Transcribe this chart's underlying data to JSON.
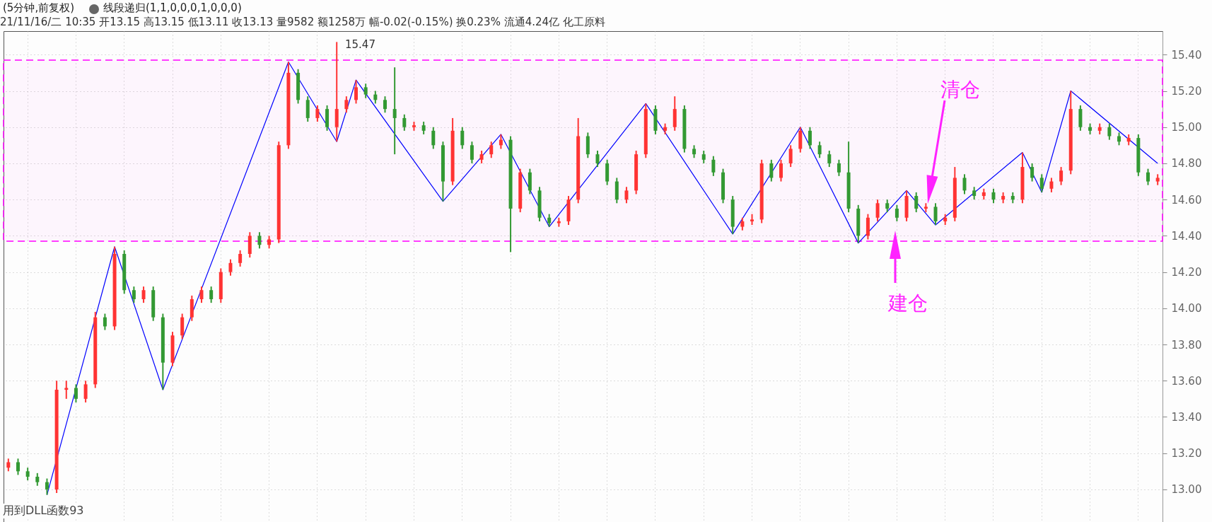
{
  "chart_data": {
    "type": "candlestick",
    "title": "(5分钟,前复权)",
    "subtitle": "线段递归(1,1,0,0,0,1,0,0,0)",
    "annotations": [
      "21/11/16/二 10:35 开13.15 高13.15 低13.11 收13.13 量9582 额1258万 幅-0.02(-0.15%) 换0.23% 流通4.24亿 化工原料",
      "15.47",
      "清仓",
      "建仓",
      "用到DLL函数93"
    ],
    "categories": [
      null,
      null,
      null,
      null,
      null,
      null,
      null,
      null,
      null,
      null,
      null,
      null,
      null,
      null,
      null,
      null,
      null,
      null,
      null,
      null,
      null,
      null,
      null,
      null,
      null,
      null,
      null,
      null,
      null,
      null,
      null,
      null,
      null,
      null,
      null,
      null,
      null,
      null,
      null,
      null,
      null,
      null,
      null,
      null,
      null,
      null,
      null,
      null,
      null,
      null,
      null,
      null,
      null,
      null,
      null,
      null,
      null,
      null,
      null,
      null,
      null,
      null,
      null,
      null,
      null,
      null,
      null,
      null,
      null,
      null,
      null,
      null,
      null,
      null,
      null,
      null,
      null,
      null,
      null,
      null,
      null,
      null,
      null,
      null,
      null,
      null,
      null,
      null,
      null,
      null,
      null,
      null,
      null,
      null,
      null,
      null,
      null,
      null,
      null,
      null,
      null,
      null,
      null,
      null,
      null,
      null,
      null,
      null,
      null,
      null,
      null,
      null,
      null,
      null,
      null,
      null,
      null,
      null,
      null,
      null
    ],
    "ohlc": [
      [
        13.12,
        13.17,
        13.1,
        13.15
      ],
      [
        13.15,
        13.17,
        13.08,
        13.1
      ],
      [
        13.1,
        13.12,
        13.05,
        13.07
      ],
      [
        13.07,
        13.09,
        13.02,
        13.04
      ],
      [
        13.04,
        13.06,
        12.97,
        13.0
      ],
      [
        13.0,
        13.6,
        12.98,
        13.55
      ],
      [
        13.55,
        13.6,
        13.5,
        13.56
      ],
      [
        13.56,
        13.58,
        13.48,
        13.5
      ],
      [
        13.5,
        13.6,
        13.48,
        13.58
      ],
      [
        13.58,
        13.98,
        13.56,
        13.95
      ],
      [
        13.95,
        13.97,
        13.88,
        13.9
      ],
      [
        13.9,
        14.34,
        13.88,
        14.3
      ],
      [
        14.3,
        14.32,
        14.08,
        14.1
      ],
      [
        14.1,
        14.12,
        14.03,
        14.05
      ],
      [
        14.05,
        14.12,
        14.03,
        14.1
      ],
      [
        14.1,
        14.12,
        13.93,
        13.95
      ],
      [
        13.95,
        13.97,
        13.55,
        13.7
      ],
      [
        13.7,
        13.87,
        13.68,
        13.85
      ],
      [
        13.85,
        13.97,
        13.83,
        13.95
      ],
      [
        13.95,
        14.07,
        13.93,
        14.05
      ],
      [
        14.05,
        14.12,
        14.03,
        14.1
      ],
      [
        14.1,
        14.12,
        14.03,
        14.05
      ],
      [
        14.05,
        14.22,
        14.03,
        14.2
      ],
      [
        14.2,
        14.27,
        14.18,
        14.25
      ],
      [
        14.25,
        14.32,
        14.23,
        14.3
      ],
      [
        14.3,
        14.42,
        14.28,
        14.4
      ],
      [
        14.4,
        14.42,
        14.33,
        14.35
      ],
      [
        14.35,
        14.4,
        14.33,
        14.38
      ],
      [
        14.38,
        14.92,
        14.36,
        14.9
      ],
      [
        14.9,
        15.36,
        14.88,
        15.3
      ],
      [
        15.3,
        15.32,
        15.13,
        15.15
      ],
      [
        15.15,
        15.17,
        15.03,
        15.05
      ],
      [
        15.05,
        15.12,
        15.03,
        15.1
      ],
      [
        15.1,
        15.12,
        14.98,
        15.0
      ],
      [
        15.0,
        15.47,
        14.92,
        15.1
      ],
      [
        15.1,
        15.17,
        15.08,
        15.15
      ],
      [
        15.15,
        15.26,
        15.13,
        15.22
      ],
      [
        15.22,
        15.24,
        15.16,
        15.18
      ],
      [
        15.18,
        15.2,
        15.13,
        15.15
      ],
      [
        15.15,
        15.17,
        15.08,
        15.1
      ],
      [
        15.1,
        15.33,
        14.85,
        15.05
      ],
      [
        15.05,
        15.07,
        14.98,
        15.0
      ],
      [
        15.0,
        15.03,
        14.98,
        15.01
      ],
      [
        15.01,
        15.03,
        14.96,
        14.98
      ],
      [
        14.98,
        15.0,
        14.88,
        14.9
      ],
      [
        14.9,
        14.92,
        14.59,
        14.7
      ],
      [
        14.7,
        15.05,
        14.68,
        14.98
      ],
      [
        14.98,
        15.0,
        14.88,
        14.9
      ],
      [
        14.9,
        14.92,
        14.8,
        14.82
      ],
      [
        14.82,
        14.87,
        14.8,
        14.85
      ],
      [
        14.85,
        14.92,
        14.83,
        14.9
      ],
      [
        14.9,
        14.96,
        14.88,
        14.93
      ],
      [
        14.93,
        14.95,
        14.31,
        14.55
      ],
      [
        14.55,
        14.77,
        14.53,
        14.75
      ],
      [
        14.75,
        14.77,
        14.63,
        14.65
      ],
      [
        14.65,
        14.67,
        14.48,
        14.5
      ],
      [
        14.5,
        14.52,
        14.45,
        14.47
      ],
      [
        14.47,
        14.5,
        14.45,
        14.48
      ],
      [
        14.48,
        14.62,
        14.46,
        14.6
      ],
      [
        14.6,
        15.05,
        14.58,
        14.95
      ],
      [
        14.95,
        14.97,
        14.83,
        14.85
      ],
      [
        14.85,
        14.87,
        14.78,
        14.8
      ],
      [
        14.8,
        14.82,
        14.68,
        14.7
      ],
      [
        14.7,
        14.72,
        14.58,
        14.6
      ],
      [
        14.6,
        14.67,
        14.58,
        14.65
      ],
      [
        14.65,
        14.87,
        14.63,
        14.85
      ],
      [
        14.85,
        15.13,
        14.83,
        15.1
      ],
      [
        15.1,
        15.12,
        14.96,
        14.98
      ],
      [
        14.98,
        15.02,
        14.96,
        15.0
      ],
      [
        15.0,
        15.17,
        14.98,
        15.1
      ],
      [
        15.1,
        15.12,
        14.86,
        14.88
      ],
      [
        14.88,
        14.9,
        14.83,
        14.85
      ],
      [
        14.85,
        14.87,
        14.8,
        14.82
      ],
      [
        14.82,
        14.84,
        14.73,
        14.75
      ],
      [
        14.75,
        14.77,
        14.58,
        14.6
      ],
      [
        14.6,
        14.62,
        14.41,
        14.45
      ],
      [
        14.45,
        14.5,
        14.43,
        14.48
      ],
      [
        14.48,
        14.52,
        14.46,
        14.49
      ],
      [
        14.49,
        14.82,
        14.47,
        14.8
      ],
      [
        14.8,
        14.82,
        14.7,
        14.72
      ],
      [
        14.72,
        14.82,
        14.7,
        14.8
      ],
      [
        14.8,
        14.9,
        14.78,
        14.88
      ],
      [
        14.88,
        15.0,
        14.86,
        14.98
      ],
      [
        14.98,
        15.0,
        14.88,
        14.9
      ],
      [
        14.9,
        14.92,
        14.83,
        14.85
      ],
      [
        14.85,
        14.87,
        14.78,
        14.8
      ],
      [
        14.8,
        14.82,
        14.73,
        14.75
      ],
      [
        14.75,
        14.92,
        14.53,
        14.55
      ],
      [
        14.55,
        14.57,
        14.36,
        14.4
      ],
      [
        14.4,
        14.52,
        14.38,
        14.5
      ],
      [
        14.5,
        14.6,
        14.48,
        14.58
      ],
      [
        14.58,
        14.6,
        14.53,
        14.55
      ],
      [
        14.55,
        14.57,
        14.48,
        14.5
      ],
      [
        14.5,
        14.65,
        14.48,
        14.62
      ],
      [
        14.62,
        14.64,
        14.53,
        14.55
      ],
      [
        14.55,
        14.58,
        14.53,
        14.56
      ],
      [
        14.56,
        14.58,
        14.46,
        14.48
      ],
      [
        14.48,
        14.52,
        14.46,
        14.5
      ],
      [
        14.5,
        14.78,
        14.48,
        14.72
      ],
      [
        14.72,
        14.74,
        14.63,
        14.65
      ],
      [
        14.65,
        14.67,
        14.6,
        14.62
      ],
      [
        14.62,
        14.66,
        14.6,
        14.64
      ],
      [
        14.64,
        14.66,
        14.58,
        14.6
      ],
      [
        14.6,
        14.64,
        14.58,
        14.62
      ],
      [
        14.62,
        14.64,
        14.58,
        14.6
      ],
      [
        14.6,
        14.86,
        14.58,
        14.78
      ],
      [
        14.78,
        14.8,
        14.7,
        14.72
      ],
      [
        14.72,
        14.74,
        14.64,
        14.66
      ],
      [
        14.66,
        14.72,
        14.64,
        14.7
      ],
      [
        14.7,
        14.78,
        14.68,
        14.76
      ],
      [
        14.76,
        15.2,
        14.74,
        15.1
      ],
      [
        15.1,
        15.12,
        14.98,
        15.0
      ],
      [
        15.0,
        15.02,
        14.96,
        14.98
      ],
      [
        14.98,
        15.02,
        14.96,
        15.0
      ],
      [
        15.0,
        15.02,
        14.93,
        14.95
      ],
      [
        14.95,
        14.97,
        14.9,
        14.92
      ],
      [
        14.92,
        14.96,
        14.9,
        14.94
      ],
      [
        14.94,
        14.96,
        14.73,
        14.75
      ],
      [
        14.75,
        14.77,
        14.68,
        14.7
      ],
      [
        14.7,
        14.74,
        14.68,
        14.72
      ]
    ],
    "colors": [
      "#ff3333",
      "#339933",
      "#339933",
      "#339933",
      "#339933",
      "#ff3333",
      "#ff3333",
      "#339933",
      "#ff3333",
      "#ff3333",
      "#339933",
      "#ff3333",
      "#339933",
      "#339933",
      "#ff3333",
      "#339933",
      "#339933",
      "#ff3333",
      "#ff3333",
      "#ff3333",
      "#ff3333",
      "#339933",
      "#ff3333",
      "#ff3333",
      "#ff3333",
      "#ff3333",
      "#339933",
      "#ff3333",
      "#ff3333",
      "#ff3333",
      "#339933",
      "#339933",
      "#ff3333",
      "#339933",
      "#ff3333",
      "#ff3333",
      "#ff3333",
      "#339933",
      "#339933",
      "#339933",
      "#339933",
      "#339933",
      "#ff3333",
      "#339933",
      "#339933",
      "#339933",
      "#ff3333",
      "#339933",
      "#339933",
      "#ff3333",
      "#ff3333",
      "#ff3333",
      "#339933",
      "#ff3333",
      "#339933",
      "#339933",
      "#339933",
      "#ff3333",
      "#ff3333",
      "#ff3333",
      "#339933",
      "#339933",
      "#339933",
      "#339933",
      "#ff3333",
      "#ff3333",
      "#ff3333",
      "#339933",
      "#ff3333",
      "#ff3333",
      "#339933",
      "#339933",
      "#339933",
      "#339933",
      "#339933",
      "#339933",
      "#ff3333",
      "#ff3333",
      "#ff3333",
      "#339933",
      "#ff3333",
      "#ff3333",
      "#ff3333",
      "#339933",
      "#339933",
      "#339933",
      "#339933",
      "#339933",
      "#339933",
      "#ff3333",
      "#ff3333",
      "#339933",
      "#339933",
      "#ff3333",
      "#339933",
      "#ff3333",
      "#339933",
      "#ff3333",
      "#ff3333",
      "#339933",
      "#339933",
      "#ff3333",
      "#339933",
      "#ff3333",
      "#339933",
      "#ff3333",
      "#339933",
      "#339933",
      "#ff3333",
      "#ff3333",
      "#ff3333",
      "#339933",
      "#339933",
      "#ff3333",
      "#339933",
      "#339933",
      "#ff3333",
      "#339933",
      "#339933",
      "#ff3333"
    ],
    "series": [
      {
        "type": "line",
        "color": "#0000ff",
        "values": [
          null,
          null,
          null,
          null,
          12.97,
          null,
          null,
          null,
          null,
          null,
          null,
          14.34,
          null,
          null,
          null,
          null,
          13.55,
          null,
          null,
          null,
          null,
          null,
          null,
          null,
          null,
          null,
          null,
          null,
          null,
          15.36,
          null,
          null,
          null,
          null,
          14.92,
          null,
          15.26,
          null,
          null,
          null,
          null,
          null,
          null,
          null,
          null,
          14.59,
          null,
          null,
          null,
          null,
          null,
          14.96,
          null,
          null,
          null,
          null,
          14.45,
          null,
          null,
          null,
          null,
          null,
          null,
          null,
          null,
          null,
          15.13,
          null,
          null,
          null,
          null,
          null,
          null,
          null,
          null,
          14.41,
          null,
          null,
          null,
          null,
          null,
          null,
          15.0,
          null,
          null,
          null,
          null,
          null,
          14.36,
          null,
          null,
          null,
          null,
          14.65,
          null,
          null,
          14.46,
          null,
          null,
          null,
          null,
          null,
          null,
          null,
          null,
          14.86,
          null,
          14.64,
          null,
          null,
          15.2,
          null,
          null,
          null,
          null,
          null,
          null,
          null,
          null,
          14.8
        ]
      }
    ],
    "bands": [
      {
        "axis": "y",
        "from": 14.37,
        "to": 15.37,
        "color": "#ff00ff"
      }
    ],
    "ylim": [
      12.82,
      15.53
    ],
    "yticks": [
      {
        "value": 13.0,
        "label": "13.00"
      },
      {
        "value": 13.2,
        "label": "13.20"
      },
      {
        "value": 13.4,
        "label": "13.40"
      },
      {
        "value": 13.6,
        "label": "13.60"
      },
      {
        "value": 13.8,
        "label": "13.80"
      },
      {
        "value": 14.0,
        "label": "14.00"
      },
      {
        "value": 14.2,
        "label": "14.20"
      },
      {
        "value": 14.4,
        "label": "14.40"
      },
      {
        "value": 14.6,
        "label": "14.60"
      },
      {
        "value": 14.8,
        "label": "14.80"
      },
      {
        "value": 15.0,
        "label": "15.00"
      },
      {
        "value": 15.2,
        "label": "15.20"
      },
      {
        "value": 15.4,
        "label": "15.40"
      }
    ],
    "grid": true,
    "tick_labels": "y"
  }
}
